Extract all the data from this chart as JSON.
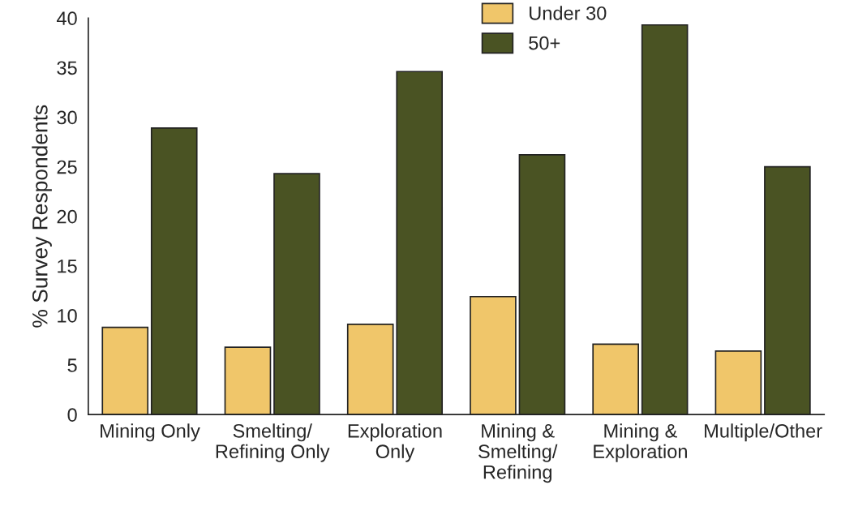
{
  "chart_data": {
    "type": "bar",
    "ylabel": "% Survey Respondents",
    "categories": [
      "Mining Only",
      "Smelting/\nRefining Only",
      "Exploration\nOnly",
      "Mining &\nSmelting/\nRefining",
      "Mining &\nExploration",
      "Multiple/Other"
    ],
    "series": [
      {
        "name": "Under 30",
        "color": "#f0c66a",
        "values": [
          8.8,
          6.8,
          9.1,
          11.9,
          7.1,
          6.4
        ]
      },
      {
        "name": "50+",
        "color": "#4a5323",
        "values": [
          28.9,
          24.3,
          34.6,
          26.2,
          39.3,
          25.0
        ]
      }
    ],
    "ylim": [
      0,
      40
    ],
    "yticks": [
      0,
      5,
      10,
      15,
      20,
      25,
      30,
      35,
      40
    ],
    "grid": false,
    "legend": "top"
  }
}
